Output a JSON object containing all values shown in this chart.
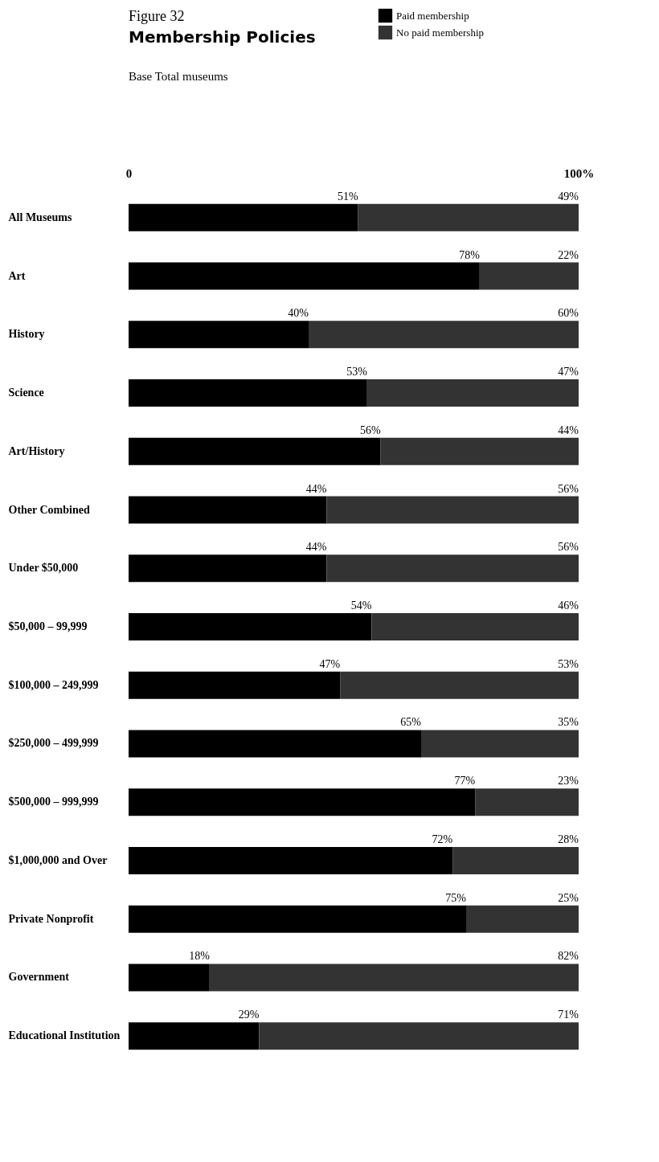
{
  "chart_data": {
    "type": "bar",
    "orientation": "horizontal",
    "stacked": true,
    "title": "Membership Policies",
    "subtitle": "Base  Total museums",
    "annotations": [
      "Figure 32"
    ],
    "categories": [
      "All Museums",
      "Art",
      "History",
      "Science",
      "Art/History",
      "Other Combined",
      "Under $50,000",
      "$50,000 – 99,999",
      "$100,000 – 249,999",
      "$250,000 – 499,999",
      "$500,000 – 999,999",
      "$1,000,000 and Over",
      "Private Nonprofit",
      "Government",
      "Educational Institution"
    ],
    "series": [
      {
        "name": "Paid membership",
        "color": "#000000",
        "values": [
          51,
          78,
          40,
          53,
          56,
          44,
          44,
          54,
          47,
          65,
          77,
          72,
          75,
          18,
          29
        ],
        "value_labels": [
          "51%",
          "78%",
          "40%",
          "53%",
          "56%",
          "44%",
          "44%",
          "54%",
          "47%",
          "65%",
          "77%",
          "72%",
          "75%",
          "18%",
          "29%"
        ]
      },
      {
        "name": "No paid membership",
        "color": "#333333",
        "values": [
          49,
          22,
          60,
          47,
          44,
          56,
          56,
          46,
          53,
          35,
          23,
          28,
          25,
          82,
          71
        ],
        "value_labels": [
          "49%",
          "22%",
          "60%",
          "47%",
          "44%",
          "56%",
          "56%",
          "46%",
          "53%",
          "35%",
          "23%",
          "28%",
          "25%",
          "82%",
          "71%"
        ]
      }
    ],
    "xlim": [
      0,
      100
    ],
    "xticks": [
      0,
      {
        "value": 100,
        "label": "100%"
      }
    ],
    "grid": false,
    "legend": "top right"
  }
}
